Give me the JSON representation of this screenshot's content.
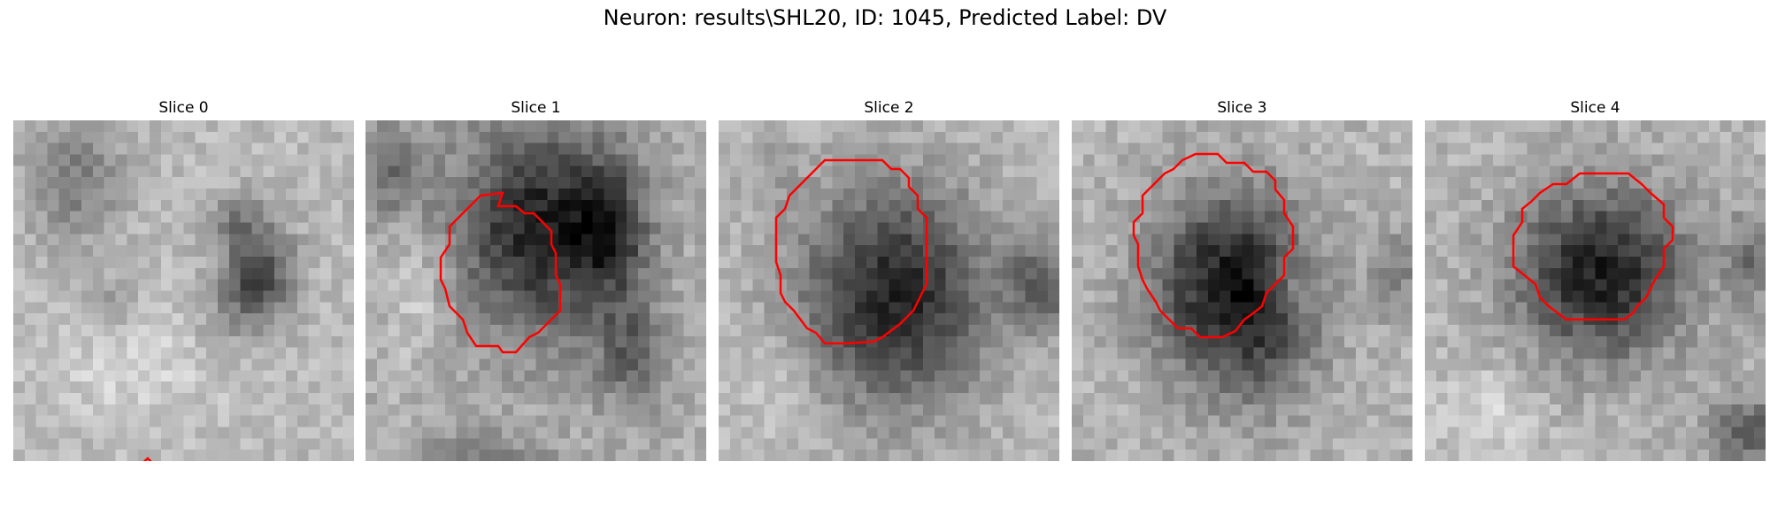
{
  "figure": {
    "title": "Neuron: results\\SHL20, ID: 1045, Predicted Label: DV"
  },
  "panels": [
    {
      "title": "Slice 0"
    },
    {
      "title": "Slice 1"
    },
    {
      "title": "Slice 2"
    },
    {
      "title": "Slice 3"
    },
    {
      "title": "Slice 4"
    }
  ],
  "colors": {
    "contour": "#ff0000",
    "background": "#ffffff"
  }
}
